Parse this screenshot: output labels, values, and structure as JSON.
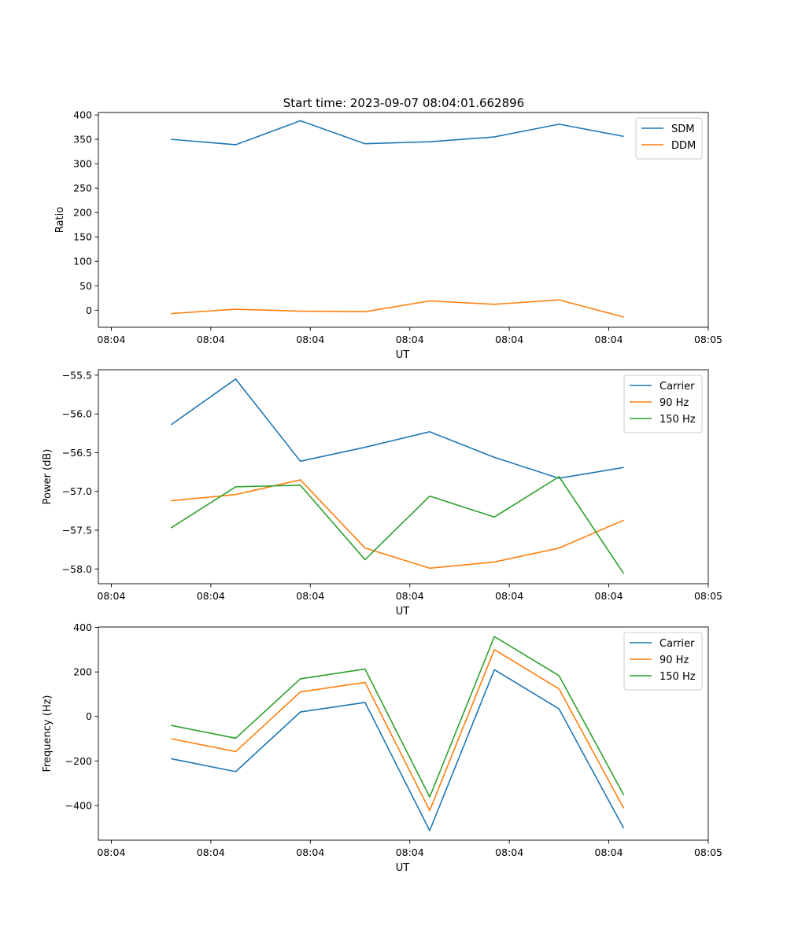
{
  "figure_title": "Start time: 2023-09-07 08:04:01.662896",
  "chart_data": [
    {
      "type": "line",
      "title": "Start time: 2023-09-07 08:04:01.662896",
      "xlabel": "UT",
      "ylabel": "Ratio",
      "x": [
        0.6,
        1.25,
        1.9,
        2.55,
        3.2,
        3.85,
        4.5,
        5.15
      ],
      "xlim": [
        -0.13,
        6.0
      ],
      "x_ticks": [
        0,
        1,
        2,
        3,
        4,
        5,
        6
      ],
      "x_tick_labels": [
        "08:04",
        "08:04",
        "08:04",
        "08:04",
        "08:04",
        "08:04",
        "08:05"
      ],
      "ylim": [
        -35,
        405
      ],
      "y_ticks": [
        0,
        50,
        100,
        150,
        200,
        250,
        300,
        350,
        400
      ],
      "y_tick_labels": [
        "0",
        "50",
        "100",
        "150",
        "200",
        "250",
        "300",
        "350",
        "400"
      ],
      "legend_position": "top-right",
      "series": [
        {
          "name": "SDM",
          "color": "#1f77b4",
          "values": [
            350,
            339,
            388,
            341,
            345,
            355,
            381,
            356
          ]
        },
        {
          "name": "DDM",
          "color": "#ff7f0e",
          "values": [
            -7,
            2,
            -2,
            -3,
            19,
            12,
            21,
            -14
          ]
        }
      ]
    },
    {
      "type": "line",
      "xlabel": "UT",
      "ylabel": "Power (dB)",
      "x": [
        0.6,
        1.25,
        1.9,
        2.55,
        3.2,
        3.85,
        4.5,
        5.15
      ],
      "xlim": [
        -0.13,
        6.0
      ],
      "x_ticks": [
        0,
        1,
        2,
        3,
        4,
        5,
        6
      ],
      "x_tick_labels": [
        "08:04",
        "08:04",
        "08:04",
        "08:04",
        "08:04",
        "08:04",
        "08:05"
      ],
      "ylim": [
        -58.19,
        -55.43
      ],
      "y_ticks": [
        -55.5,
        -56.0,
        -56.5,
        -57.0,
        -57.5,
        -58.0
      ],
      "y_tick_labels": [
        "−55.5",
        "−56.0",
        "−56.5",
        "−57.0",
        "−57.5",
        "−58.0"
      ],
      "legend_position": "top-right",
      "series": [
        {
          "name": "Carrier",
          "color": "#1f77b4",
          "values": [
            -56.14,
            -55.55,
            -56.61,
            -56.43,
            -56.23,
            -56.56,
            -56.83,
            -56.69
          ]
        },
        {
          "name": "90 Hz",
          "color": "#ff7f0e",
          "values": [
            -57.12,
            -57.04,
            -56.85,
            -57.73,
            -57.99,
            -57.91,
            -57.73,
            -57.37
          ]
        },
        {
          "name": "150 Hz",
          "color": "#2ca02c",
          "values": [
            -57.47,
            -56.94,
            -56.92,
            -57.88,
            -57.06,
            -57.33,
            -56.81,
            -58.06
          ]
        }
      ]
    },
    {
      "type": "line",
      "xlabel": "UT",
      "ylabel": "Frequency (Hz)",
      "x": [
        0.6,
        1.25,
        1.9,
        2.55,
        3.2,
        3.85,
        4.5,
        5.15
      ],
      "xlim": [
        -0.13,
        6.0
      ],
      "x_ticks": [
        0,
        1,
        2,
        3,
        4,
        5,
        6
      ],
      "x_tick_labels": [
        "08:04",
        "08:04",
        "08:04",
        "08:04",
        "08:04",
        "08:04",
        "08:05"
      ],
      "ylim": [
        -556,
        402
      ],
      "y_ticks": [
        -400,
        -200,
        0,
        200,
        400
      ],
      "y_tick_labels": [
        "−400",
        "−200",
        "0",
        "200",
        "400"
      ],
      "legend_position": "top-right",
      "series": [
        {
          "name": "Carrier",
          "color": "#1f77b4",
          "values": [
            -190,
            -248,
            20,
            63,
            -513,
            210,
            34,
            -503
          ]
        },
        {
          "name": "90 Hz",
          "color": "#ff7f0e",
          "values": [
            -100,
            -158,
            110,
            153,
            -423,
            300,
            124,
            -413
          ]
        },
        {
          "name": "150 Hz",
          "color": "#2ca02c",
          "values": [
            -40,
            -98,
            169,
            213,
            -362,
            359,
            183,
            -353
          ]
        }
      ]
    }
  ]
}
